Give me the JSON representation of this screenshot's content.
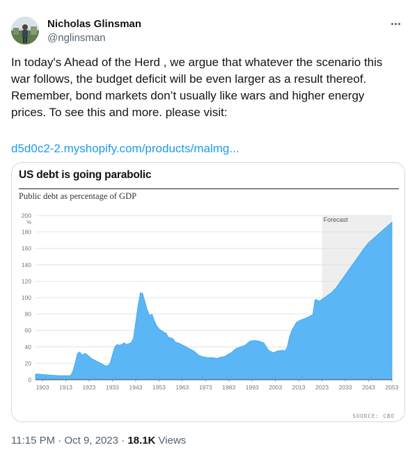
{
  "user": {
    "name": "Nicholas Glinsman",
    "handle": "@nglinsman"
  },
  "tweet": {
    "text": "In today's Ahead of the Herd , we argue that whatever the scenario this war follows, the budget deficit will be even larger as a result thereof. Remember, bond markets don’t usually like wars and higher energy prices. To see this and more. please visit:",
    "link": "d5d0c2-2.myshopify.com/products/malmg..."
  },
  "meta": {
    "time": "11:15 PM",
    "separator": "·",
    "date": "Oct 9, 2023",
    "views_count": "18.1K",
    "views_label": "Views"
  },
  "colors": {
    "area_fill": "#5bb6f5",
    "forecast_shade": "#eeeeee",
    "link": "#1d9bf0"
  },
  "chart_data": {
    "type": "area",
    "title": "US debt is going parabolic",
    "subtitle": "Public debt as percentage of GDP",
    "ylabel_unit": "%",
    "forecast_label": "Forecast",
    "forecast_start": 2023,
    "source": "SOURCE: CBO",
    "xlim": [
      1900,
      2053
    ],
    "ylim": [
      0,
      200
    ],
    "yticks": [
      0,
      20,
      40,
      60,
      80,
      100,
      120,
      140,
      160,
      180,
      200
    ],
    "xticks": [
      1903,
      1913,
      1923,
      1933,
      1943,
      1953,
      1963,
      1973,
      1983,
      1993,
      2003,
      2013,
      2023,
      2033,
      2043,
      2053
    ],
    "grid": true,
    "series": [
      {
        "x": [
          1900,
          1905,
          1910,
          1915,
          1916,
          1917,
          1918,
          1919,
          1920,
          1921,
          1922,
          1924,
          1926,
          1928,
          1930,
          1931,
          1932,
          1933,
          1934,
          1935,
          1936,
          1937,
          1938,
          1939,
          1940,
          1941,
          1942,
          1943,
          1944,
          1945,
          1946,
          1947,
          1948,
          1949,
          1950,
          1951,
          1952,
          1953,
          1954,
          1955,
          1956,
          1957,
          1958,
          1959,
          1960,
          1962,
          1964,
          1966,
          1968,
          1970,
          1972,
          1974,
          1976,
          1978,
          1980,
          1981,
          1982,
          1984,
          1986,
          1988,
          1990,
          1992,
          1994,
          1996,
          1998,
          2000,
          2002,
          2004,
          2006,
          2007,
          2008,
          2009,
          2010,
          2011,
          2012,
          2014,
          2016,
          2018,
          2019,
          2020,
          2021,
          2022,
          2023,
          2025,
          2027,
          2029,
          2031,
          2033,
          2035,
          2037,
          2039,
          2041,
          2043,
          2045,
          2047,
          2049,
          2051,
          2053
        ],
        "values": [
          7,
          6,
          5,
          5,
          10,
          20,
          32,
          34,
          30,
          32,
          31,
          26,
          23,
          20,
          17,
          17,
          20,
          30,
          40,
          43,
          42,
          43,
          45,
          43,
          44,
          45,
          50,
          70,
          90,
          106,
          105,
          95,
          85,
          78,
          80,
          72,
          66,
          62,
          60,
          58,
          57,
          52,
          51,
          50,
          46,
          44,
          41,
          38,
          35,
          30,
          28,
          27,
          27,
          26,
          28,
          28,
          30,
          33,
          38,
          40,
          42,
          47,
          48,
          47,
          45,
          36,
          33,
          35,
          36,
          35,
          39,
          52,
          60,
          65,
          70,
          73,
          75,
          78,
          79,
          98,
          97,
          96,
          98,
          102,
          106,
          112,
          120,
          128,
          136,
          144,
          152,
          160,
          167,
          172,
          177,
          182,
          187,
          192
        ]
      }
    ]
  }
}
